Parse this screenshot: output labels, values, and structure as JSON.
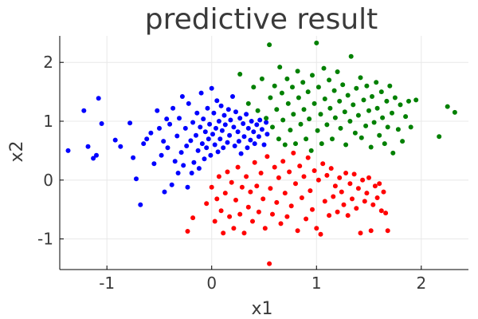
{
  "chart_data": {
    "type": "scatter",
    "title": "predictive result",
    "xlabel": "x1",
    "ylabel": "x2",
    "xlim": [
      -1.45,
      2.45
    ],
    "ylim": [
      -1.52,
      2.45
    ],
    "xticks": [
      -1,
      0,
      1,
      2
    ],
    "yticks": [
      -1,
      0,
      1,
      2
    ],
    "grid": true,
    "legend": "none",
    "colors": {
      "class_blue": "#0000ff",
      "class_green": "#008000",
      "class_red": "#ff0000"
    },
    "series": [
      {
        "color": "#0000ff",
        "points": [
          [
            -1.37,
            0.5
          ],
          [
            -1.22,
            1.18
          ],
          [
            -1.18,
            0.57
          ],
          [
            -1.13,
            0.37
          ],
          [
            -1.1,
            0.42
          ],
          [
            -1.08,
            1.39
          ],
          [
            -1.05,
            0.96
          ],
          [
            -0.92,
            0.68
          ],
          [
            -0.87,
            0.57
          ],
          [
            -0.78,
            0.97
          ],
          [
            -0.75,
            0.38
          ],
          [
            -0.72,
            0.02
          ],
          [
            -0.68,
            -0.42
          ],
          [
            -0.65,
            0.62
          ],
          [
            -0.62,
            0.7
          ],
          [
            -0.58,
            0.8
          ],
          [
            -0.55,
            0.28
          ],
          [
            -0.52,
            1.18
          ],
          [
            -0.5,
            0.88
          ],
          [
            -0.48,
            0.42
          ],
          [
            -0.46,
            0.66
          ],
          [
            -0.45,
            -0.2
          ],
          [
            -0.43,
            1.04
          ],
          [
            -0.42,
            0.55
          ],
          [
            -0.4,
            0.95
          ],
          [
            -0.38,
            -0.08
          ],
          [
            -0.37,
            1.22
          ],
          [
            -0.35,
            0.32
          ],
          [
            -0.33,
            0.75
          ],
          [
            -0.32,
            0.12
          ],
          [
            -0.31,
            1.05
          ],
          [
            -0.29,
            0.47
          ],
          [
            -0.28,
            1.42
          ],
          [
            -0.27,
            0.25
          ],
          [
            -0.25,
            0.88
          ],
          [
            -0.24,
            0.58
          ],
          [
            -0.23,
            -0.12
          ],
          [
            -0.22,
            1.3
          ],
          [
            -0.2,
            0.67
          ],
          [
            -0.19,
            0.12
          ],
          [
            -0.18,
            0.98
          ],
          [
            -0.17,
            0.3
          ],
          [
            -0.15,
            0.76
          ],
          [
            -0.14,
            1.14
          ],
          [
            -0.13,
            0.5
          ],
          [
            -0.12,
            0.2
          ],
          [
            -0.11,
            0.9
          ],
          [
            -0.1,
            1.48
          ],
          [
            -0.09,
            0.62
          ],
          [
            -0.08,
            1.04
          ],
          [
            -0.07,
            0.36
          ],
          [
            -0.06,
            0.82
          ],
          [
            -0.05,
            0.55
          ],
          [
            -0.04,
            1.22
          ],
          [
            -0.03,
            0.7
          ],
          [
            -0.02,
            0.95
          ],
          [
            -0.01,
            0.42
          ],
          [
            0.0,
            1.56
          ],
          [
            0.01,
            0.78
          ],
          [
            0.02,
            1.14
          ],
          [
            0.03,
            0.6
          ],
          [
            0.04,
            0.88
          ],
          [
            0.05,
            1.35
          ],
          [
            0.06,
            0.48
          ],
          [
            0.07,
            1.0
          ],
          [
            0.08,
            0.7
          ],
          [
            0.09,
            1.26
          ],
          [
            0.1,
            0.84
          ],
          [
            0.11,
            0.55
          ],
          [
            0.12,
            1.1
          ],
          [
            0.13,
            0.94
          ],
          [
            0.15,
            0.64
          ],
          [
            0.16,
            1.2
          ],
          [
            0.17,
            0.76
          ],
          [
            0.18,
            1.02
          ],
          [
            0.2,
            1.42
          ],
          [
            0.21,
            0.9
          ],
          [
            0.22,
            0.58
          ],
          [
            0.23,
            1.16
          ],
          [
            0.25,
            0.82
          ],
          [
            0.26,
            0.66
          ],
          [
            0.27,
            1.05
          ],
          [
            0.28,
            0.45
          ],
          [
            0.3,
            0.96
          ],
          [
            0.31,
            0.74
          ],
          [
            0.33,
            1.12
          ],
          [
            0.34,
            0.55
          ],
          [
            0.35,
            0.88
          ],
          [
            0.37,
            0.68
          ],
          [
            0.38,
            1.0
          ],
          [
            0.4,
            0.82
          ],
          [
            0.41,
            0.62
          ],
          [
            0.43,
            0.94
          ],
          [
            0.45,
            0.74
          ],
          [
            0.46,
            1.02
          ],
          [
            0.48,
            0.86
          ],
          [
            0.5,
            0.6
          ],
          [
            0.52,
            0.98
          ],
          [
            0.53,
            0.78
          ]
        ]
      },
      {
        "color": "#008000",
        "points": [
          [
            0.27,
            1.8
          ],
          [
            0.35,
            1.3
          ],
          [
            0.4,
            1.58
          ],
          [
            0.44,
            1.18
          ],
          [
            0.48,
            1.72
          ],
          [
            0.52,
            1.05
          ],
          [
            0.55,
            2.3
          ],
          [
            0.56,
            1.4
          ],
          [
            0.58,
            0.9
          ],
          [
            0.6,
            1.6
          ],
          [
            0.62,
            1.2
          ],
          [
            0.64,
            0.7
          ],
          [
            0.65,
            1.92
          ],
          [
            0.67,
            1.48
          ],
          [
            0.68,
            1.02
          ],
          [
            0.7,
            0.6
          ],
          [
            0.72,
            1.72
          ],
          [
            0.73,
            1.3
          ],
          [
            0.75,
            0.85
          ],
          [
            0.77,
            1.58
          ],
          [
            0.78,
            1.12
          ],
          [
            0.8,
            0.62
          ],
          [
            0.82,
            1.85
          ],
          [
            0.83,
            1.4
          ],
          [
            0.85,
            0.95
          ],
          [
            0.87,
            1.66
          ],
          [
            0.88,
            1.2
          ],
          [
            0.9,
            0.7
          ],
          [
            0.92,
            1.5
          ],
          [
            0.93,
            1.04
          ],
          [
            0.95,
            0.5
          ],
          [
            0.96,
            1.78
          ],
          [
            0.98,
            1.3
          ],
          [
            1.0,
            2.33
          ],
          [
            1.01,
            0.84
          ],
          [
            1.02,
            1.58
          ],
          [
            1.04,
            1.12
          ],
          [
            1.05,
            0.62
          ],
          [
            1.07,
            1.9
          ],
          [
            1.08,
            1.38
          ],
          [
            1.1,
            0.94
          ],
          [
            1.12,
            1.7
          ],
          [
            1.13,
            1.22
          ],
          [
            1.15,
            0.7
          ],
          [
            1.17,
            1.52
          ],
          [
            1.18,
            1.06
          ],
          [
            1.2,
            1.84
          ],
          [
            1.22,
            1.34
          ],
          [
            1.23,
            0.88
          ],
          [
            1.25,
            1.62
          ],
          [
            1.27,
            1.16
          ],
          [
            1.28,
            0.6
          ],
          [
            1.3,
            1.44
          ],
          [
            1.32,
            1.0
          ],
          [
            1.33,
            2.1
          ],
          [
            1.35,
            1.28
          ],
          [
            1.37,
            0.8
          ],
          [
            1.38,
            1.56
          ],
          [
            1.4,
            1.1
          ],
          [
            1.42,
            1.74
          ],
          [
            1.43,
            0.72
          ],
          [
            1.45,
            1.36
          ],
          [
            1.47,
            0.92
          ],
          [
            1.48,
            1.6
          ],
          [
            1.5,
            1.18
          ],
          [
            1.52,
            0.56
          ],
          [
            1.53,
            1.42
          ],
          [
            1.55,
            0.98
          ],
          [
            1.57,
            1.66
          ],
          [
            1.58,
            1.22
          ],
          [
            1.6,
            0.76
          ],
          [
            1.62,
            1.5
          ],
          [
            1.63,
            1.06
          ],
          [
            1.65,
            0.62
          ],
          [
            1.67,
            1.34
          ],
          [
            1.68,
            0.9
          ],
          [
            1.7,
            1.6
          ],
          [
            1.72,
            1.14
          ],
          [
            1.73,
            0.46
          ],
          [
            1.75,
            1.4
          ],
          [
            1.78,
            0.86
          ],
          [
            1.8,
            1.28
          ],
          [
            1.82,
            0.66
          ],
          [
            1.85,
            1.08
          ],
          [
            1.88,
            1.34
          ],
          [
            1.9,
            0.9
          ],
          [
            1.95,
            1.36
          ],
          [
            2.17,
            0.74
          ],
          [
            2.25,
            1.25
          ],
          [
            2.32,
            1.15
          ]
        ]
      },
      {
        "color": "#ff0000",
        "points": [
          [
            -0.23,
            -0.87
          ],
          [
            -0.18,
            -0.64
          ],
          [
            -0.05,
            -0.4
          ],
          [
            0.0,
            -0.12
          ],
          [
            0.03,
            -0.7
          ],
          [
            0.05,
            -0.32
          ],
          [
            0.07,
            0.06
          ],
          [
            0.09,
            -0.52
          ],
          [
            0.11,
            -0.9
          ],
          [
            0.13,
            -0.22
          ],
          [
            0.15,
            0.14
          ],
          [
            0.17,
            -0.62
          ],
          [
            0.19,
            -0.04
          ],
          [
            0.21,
            -0.82
          ],
          [
            0.23,
            -0.34
          ],
          [
            0.25,
            0.22
          ],
          [
            0.27,
            -0.58
          ],
          [
            0.29,
            -0.12
          ],
          [
            0.31,
            -0.9
          ],
          [
            0.33,
            0.06
          ],
          [
            0.35,
            -0.46
          ],
          [
            0.37,
            -0.2
          ],
          [
            0.39,
            -0.7
          ],
          [
            0.41,
            0.3
          ],
          [
            0.43,
            -0.1
          ],
          [
            0.45,
            -0.54
          ],
          [
            0.47,
            0.12
          ],
          [
            0.49,
            -0.32
          ],
          [
            0.51,
            -0.82
          ],
          [
            0.53,
            0.4
          ],
          [
            0.55,
            -1.42
          ],
          [
            0.56,
            -0.14
          ],
          [
            0.58,
            -0.58
          ],
          [
            0.6,
            0.22
          ],
          [
            0.62,
            -0.38
          ],
          [
            0.64,
            0.04
          ],
          [
            0.66,
            -0.74
          ],
          [
            0.68,
            0.32
          ],
          [
            0.7,
            -0.22
          ],
          [
            0.72,
            -0.62
          ],
          [
            0.74,
            0.14
          ],
          [
            0.76,
            -0.44
          ],
          [
            0.78,
            0.46
          ],
          [
            0.8,
            -0.06
          ],
          [
            0.82,
            -0.86
          ],
          [
            0.84,
            0.24
          ],
          [
            0.86,
            -0.3
          ],
          [
            0.88,
            0.06
          ],
          [
            0.9,
            -0.66
          ],
          [
            0.92,
            0.38
          ],
          [
            0.94,
            -0.18
          ],
          [
            0.96,
            -0.5
          ],
          [
            0.98,
            0.16
          ],
          [
            1.0,
            -0.82
          ],
          [
            1.02,
            0.0
          ],
          [
            1.04,
            -0.92
          ],
          [
            1.06,
            0.28
          ],
          [
            1.08,
            -0.36
          ],
          [
            1.1,
            0.08
          ],
          [
            1.12,
            -0.6
          ],
          [
            1.14,
            0.2
          ],
          [
            1.16,
            -0.28
          ],
          [
            1.18,
            -0.1
          ],
          [
            1.2,
            -0.54
          ],
          [
            1.22,
            0.04
          ],
          [
            1.24,
            -0.2
          ],
          [
            1.26,
            -0.42
          ],
          [
            1.28,
            0.12
          ],
          [
            1.3,
            -0.6
          ],
          [
            1.32,
            -0.06
          ],
          [
            1.34,
            -0.32
          ],
          [
            1.36,
            0.1
          ],
          [
            1.38,
            -0.48
          ],
          [
            1.4,
            -0.14
          ],
          [
            1.42,
            -0.9
          ],
          [
            1.44,
            0.0
          ],
          [
            1.46,
            -0.36
          ],
          [
            1.48,
            -0.22
          ],
          [
            1.5,
            0.04
          ],
          [
            1.52,
            -0.86
          ],
          [
            1.54,
            -0.42
          ],
          [
            1.56,
            -0.1
          ],
          [
            1.58,
            -0.3
          ],
          [
            1.6,
            -0.06
          ],
          [
            1.62,
            -0.52
          ],
          [
            1.64,
            -0.2
          ],
          [
            1.66,
            -0.56
          ],
          [
            1.68,
            -0.86
          ]
        ]
      }
    ]
  }
}
